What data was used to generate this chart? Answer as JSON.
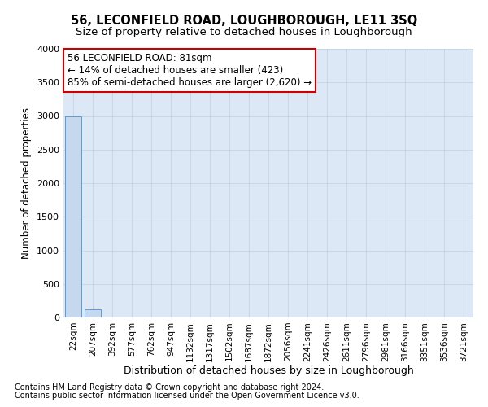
{
  "title": "56, LECONFIELD ROAD, LOUGHBOROUGH, LE11 3SQ",
  "subtitle": "Size of property relative to detached houses in Loughborough",
  "xlabel": "Distribution of detached houses by size in Loughborough",
  "ylabel": "Number of detached properties",
  "footnote1": "Contains HM Land Registry data © Crown copyright and database right 2024.",
  "footnote2": "Contains public sector information licensed under the Open Government Licence v3.0.",
  "categories": [
    "22sqm",
    "207sqm",
    "392sqm",
    "577sqm",
    "762sqm",
    "947sqm",
    "1132sqm",
    "1317sqm",
    "1502sqm",
    "1687sqm",
    "1872sqm",
    "2056sqm",
    "2241sqm",
    "2426sqm",
    "2611sqm",
    "2796sqm",
    "2981sqm",
    "3166sqm",
    "3351sqm",
    "3536sqm",
    "3721sqm"
  ],
  "bar_heights": [
    3000,
    120,
    0,
    0,
    0,
    0,
    0,
    0,
    0,
    0,
    0,
    0,
    0,
    0,
    0,
    0,
    0,
    0,
    0,
    0,
    0
  ],
  "bar_color": "#c5d8ee",
  "bar_edge_color": "#5b9bd5",
  "ylim": [
    0,
    4000
  ],
  "yticks": [
    0,
    500,
    1000,
    1500,
    2000,
    2500,
    3000,
    3500,
    4000
  ],
  "grid_color": "#c0cfe0",
  "bg_color": "#dce8f5",
  "annotation_line1": "56 LECONFIELD ROAD: 81sqm",
  "annotation_line2": "← 14% of detached houses are smaller (423)",
  "annotation_line3": "85% of semi-detached houses are larger (2,620) →",
  "annotation_box_color": "#ffffff",
  "annotation_border_color": "#cc0000",
  "title_fontsize": 10.5,
  "subtitle_fontsize": 9.5,
  "ylabel_fontsize": 8.5,
  "xlabel_fontsize": 9,
  "tick_fontsize": 8,
  "xtick_fontsize": 7.5,
  "footnote_fontsize": 7,
  "annot_fontsize": 8.5
}
